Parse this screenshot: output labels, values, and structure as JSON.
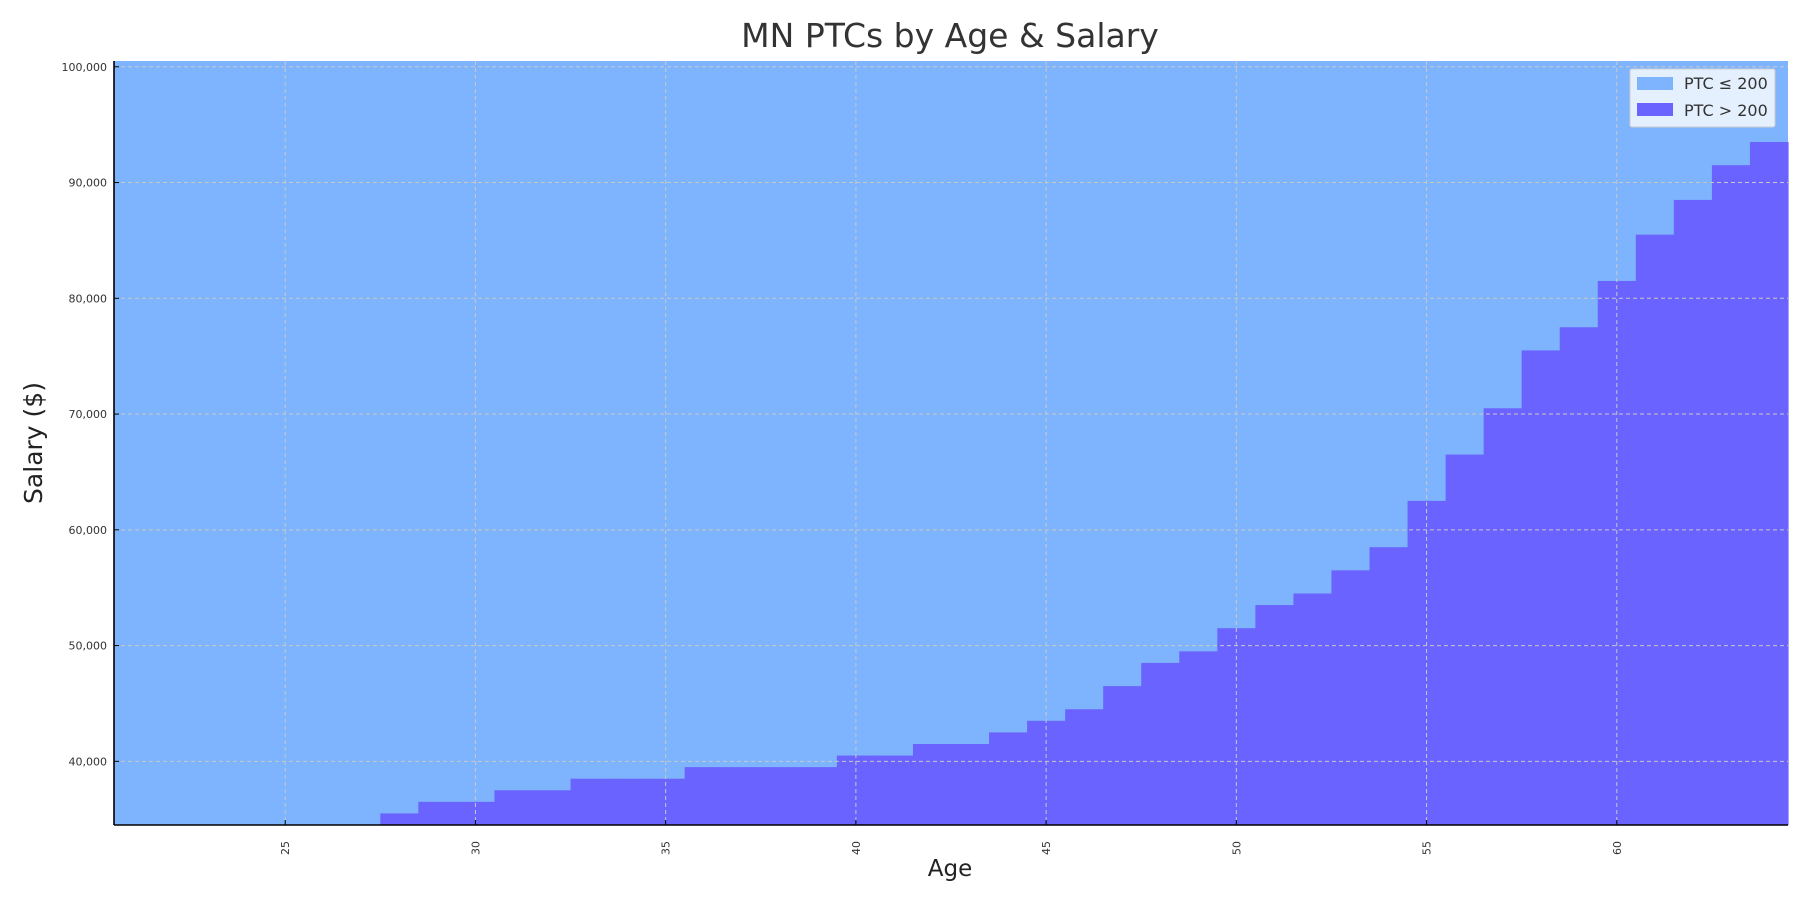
{
  "chart_data": {
    "type": "area",
    "title": "MN PTCs by Age & Salary",
    "xlabel": "Age",
    "ylabel": "Salary ($)",
    "xlim": [
      20.5,
      64.5
    ],
    "ylim": [
      34500,
      100500
    ],
    "x_ticks": [
      25,
      30,
      35,
      40,
      45,
      50,
      55,
      60
    ],
    "y_ticks": [
      40000,
      50000,
      60000,
      70000,
      80000,
      90000,
      100000
    ],
    "y_tick_labels": [
      "40,000",
      "50,000",
      "60,000",
      "70,000",
      "80,000",
      "90,000",
      "100,000"
    ],
    "grid": true,
    "legend_position": "top-right",
    "series": [
      {
        "name": "PTC ≤ 200",
        "color": "#7eb4fd"
      },
      {
        "name": "PTC > 200",
        "color": "#6b63ff"
      }
    ],
    "ages": [
      28,
      29,
      30,
      31,
      32,
      33,
      34,
      35,
      36,
      37,
      38,
      39,
      40,
      41,
      42,
      43,
      44,
      45,
      46,
      47,
      48,
      49,
      50,
      51,
      52,
      53,
      54,
      55,
      56,
      57,
      58,
      59,
      60,
      61,
      62,
      63,
      64
    ],
    "threshold_salary": [
      35500,
      36500,
      36500,
      37500,
      37500,
      38500,
      38500,
      38500,
      39500,
      39500,
      39500,
      39500,
      40500,
      40500,
      41500,
      41500,
      42500,
      43500,
      44500,
      46500,
      48500,
      49500,
      51500,
      53500,
      54500,
      56500,
      58500,
      62500,
      66500,
      70500,
      75500,
      77500,
      81500,
      85500,
      88500,
      91500,
      93500
    ]
  }
}
